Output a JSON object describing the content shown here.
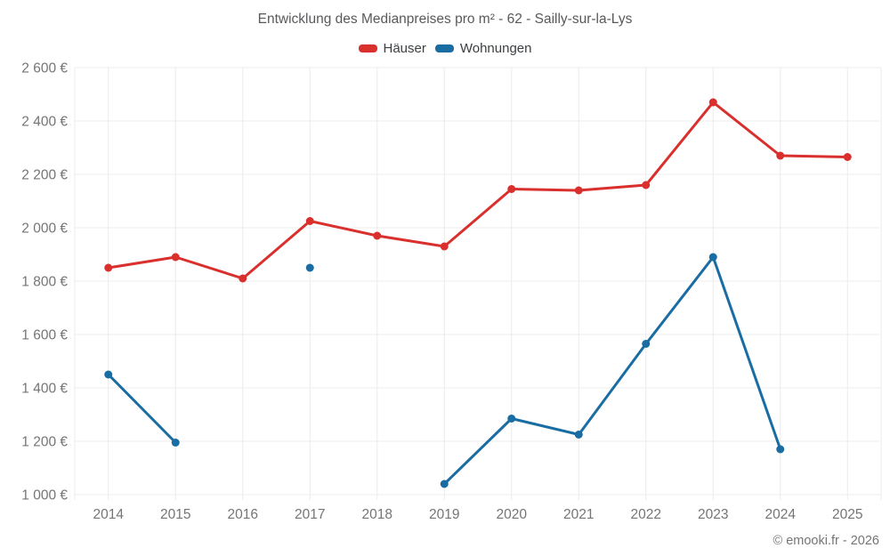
{
  "chart_data": {
    "type": "line",
    "title": "Entwicklung des Medianpreises pro m² - 62 - Sailly-sur-la-Lys",
    "categories": [
      "2014",
      "2015",
      "2016",
      "2017",
      "2018",
      "2019",
      "2020",
      "2021",
      "2022",
      "2023",
      "2024",
      "2025"
    ],
    "series": [
      {
        "name": "Häuser",
        "color": "#d9302e",
        "values": [
          1850,
          1890,
          1810,
          2025,
          1970,
          1930,
          2145,
          2140,
          2160,
          2470,
          2270,
          2265
        ]
      },
      {
        "name": "Wohnungen",
        "color": "#1a6da3",
        "values": [
          1450,
          1195,
          null,
          1850,
          null,
          1040,
          1285,
          1225,
          1565,
          1890,
          1170,
          null
        ]
      }
    ],
    "xlabel": "",
    "ylabel": "",
    "ylim": [
      1000,
      2600
    ],
    "ytick_step": 200,
    "ytick_suffix": " €",
    "grid": true,
    "legend_position": "top"
  },
  "footer": {
    "text": "© emooki.fr - 2026"
  },
  "theme": {
    "grid_color": "#ececec",
    "tick_color": "#757575",
    "title_color": "#58595b"
  }
}
